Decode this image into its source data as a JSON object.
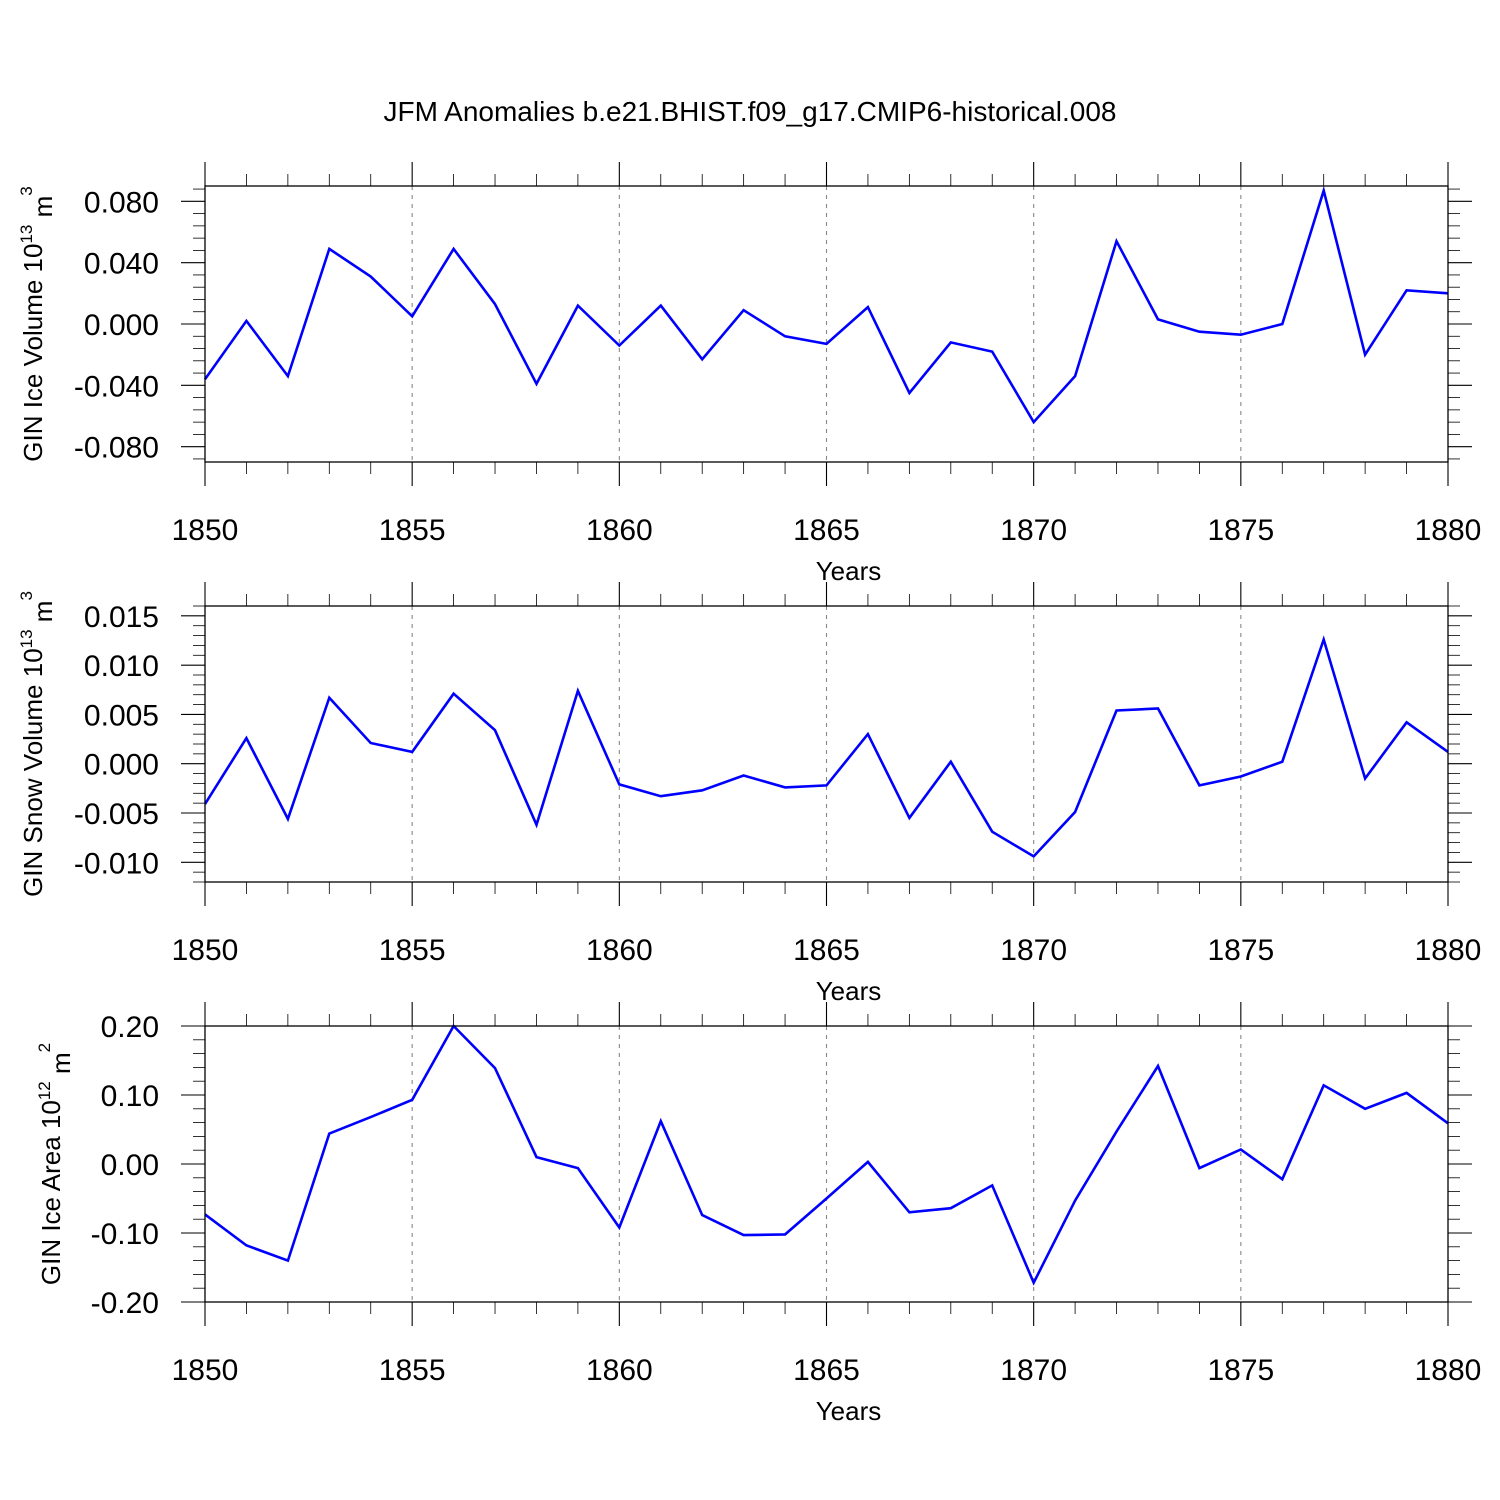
{
  "title": "JFM Anomalies b.e21.BHIST.f09_g17.CMIP6-historical.008",
  "colors": {
    "line": "#0000ff",
    "grid": "#888888",
    "axis": "#000000"
  },
  "chart_data": [
    {
      "type": "line",
      "xlabel": "Years",
      "ylabel": {
        "text": "GIN Ice Volume 10",
        "sup1": "13",
        "mid": " m",
        "sup2": "3"
      },
      "xlim": [
        1850,
        1880
      ],
      "ylim": [
        -0.09,
        0.09
      ],
      "xticks": [
        "1850",
        "1855",
        "1860",
        "1865",
        "1870",
        "1875",
        "1880"
      ],
      "yticks": [
        {
          "value": 0.08,
          "label": "0.080"
        },
        {
          "value": 0.04,
          "label": "0.040"
        },
        {
          "value": 0.0,
          "label": "0.000"
        },
        {
          "value": -0.04,
          "label": "-0.040"
        },
        {
          "value": -0.08,
          "label": "-0.080"
        }
      ],
      "ytick_minor_step": 0.008,
      "grid": "vertical dashed at major x ticks",
      "x": [
        1850,
        1851,
        1852,
        1853,
        1854,
        1855,
        1856,
        1857,
        1858,
        1859,
        1860,
        1861,
        1862,
        1863,
        1864,
        1865,
        1866,
        1867,
        1868,
        1869,
        1870,
        1871,
        1872,
        1873,
        1874,
        1875,
        1876,
        1877,
        1878,
        1879,
        1880
      ],
      "series": [
        {
          "values": [
            -0.036,
            0.002,
            -0.034,
            0.049,
            0.031,
            0.005,
            0.049,
            0.013,
            -0.039,
            0.012,
            -0.014,
            0.012,
            -0.023,
            0.009,
            -0.008,
            -0.013,
            0.011,
            -0.045,
            -0.012,
            -0.018,
            -0.064,
            -0.034,
            0.054,
            0.003,
            -0.005,
            -0.007,
            0.0,
            0.087,
            -0.02,
            0.022,
            0.02
          ]
        }
      ]
    },
    {
      "type": "line",
      "xlabel": "Years",
      "ylabel": {
        "text": "GIN Snow Volume 10",
        "sup1": "13",
        "mid": " m",
        "sup2": "3"
      },
      "xlim": [
        1850,
        1880
      ],
      "ylim": [
        -0.012,
        0.016
      ],
      "xticks": [
        "1850",
        "1855",
        "1860",
        "1865",
        "1870",
        "1875",
        "1880"
      ],
      "yticks": [
        {
          "value": 0.015,
          "label": "0.015"
        },
        {
          "value": 0.01,
          "label": "0.010"
        },
        {
          "value": 0.005,
          "label": "0.005"
        },
        {
          "value": 0.0,
          "label": "0.000"
        },
        {
          "value": -0.005,
          "label": "-0.005"
        },
        {
          "value": -0.01,
          "label": "-0.010"
        }
      ],
      "ytick_minor_step": 0.001,
      "grid": "vertical dashed at major x ticks",
      "x": [
        1850,
        1851,
        1852,
        1853,
        1854,
        1855,
        1856,
        1857,
        1858,
        1859,
        1860,
        1861,
        1862,
        1863,
        1864,
        1865,
        1866,
        1867,
        1868,
        1869,
        1870,
        1871,
        1872,
        1873,
        1874,
        1875,
        1876,
        1877,
        1878,
        1879,
        1880
      ],
      "series": [
        {
          "values": [
            -0.0041,
            0.0026,
            -0.0056,
            0.0067,
            0.0021,
            0.0012,
            0.0071,
            0.0034,
            -0.0062,
            0.0074,
            -0.0021,
            -0.0033,
            -0.0027,
            -0.0012,
            -0.0024,
            -0.0022,
            0.003,
            -0.0055,
            0.0002,
            -0.0069,
            -0.0094,
            -0.0049,
            0.0054,
            0.0056,
            -0.0022,
            -0.0013,
            0.0002,
            0.0126,
            -0.0015,
            0.0042,
            0.0012
          ]
        }
      ]
    },
    {
      "type": "line",
      "xlabel": "Years",
      "ylabel": {
        "text": "GIN Ice Area 10",
        "sup1": "12",
        "mid": " m",
        "sup2": "2"
      },
      "xlim": [
        1850,
        1880
      ],
      "ylim": [
        -0.2,
        0.2
      ],
      "xticks": [
        "1850",
        "1855",
        "1860",
        "1865",
        "1870",
        "1875",
        "1880"
      ],
      "yticks": [
        {
          "value": 0.2,
          "label": "0.20"
        },
        {
          "value": 0.1,
          "label": "0.10"
        },
        {
          "value": 0.0,
          "label": "0.00"
        },
        {
          "value": -0.1,
          "label": "-0.10"
        },
        {
          "value": -0.2,
          "label": "-0.20"
        }
      ],
      "ytick_minor_step": 0.02,
      "grid": "vertical dashed at major x ticks",
      "x": [
        1850,
        1851,
        1852,
        1853,
        1854,
        1855,
        1856,
        1857,
        1858,
        1859,
        1860,
        1861,
        1862,
        1863,
        1864,
        1865,
        1866,
        1867,
        1868,
        1869,
        1870,
        1871,
        1872,
        1873,
        1874,
        1875,
        1876,
        1877,
        1878,
        1879,
        1880
      ],
      "series": [
        {
          "values": [
            -0.073,
            -0.118,
            -0.14,
            0.044,
            0.068,
            0.093,
            0.2,
            0.139,
            0.01,
            -0.006,
            -0.092,
            0.062,
            -0.074,
            -0.103,
            -0.102,
            -0.05,
            0.003,
            -0.07,
            -0.064,
            -0.031,
            -0.172,
            -0.053,
            0.047,
            0.142,
            -0.006,
            0.021,
            -0.022,
            0.114,
            0.08,
            0.103,
            0.059
          ]
        }
      ]
    }
  ]
}
